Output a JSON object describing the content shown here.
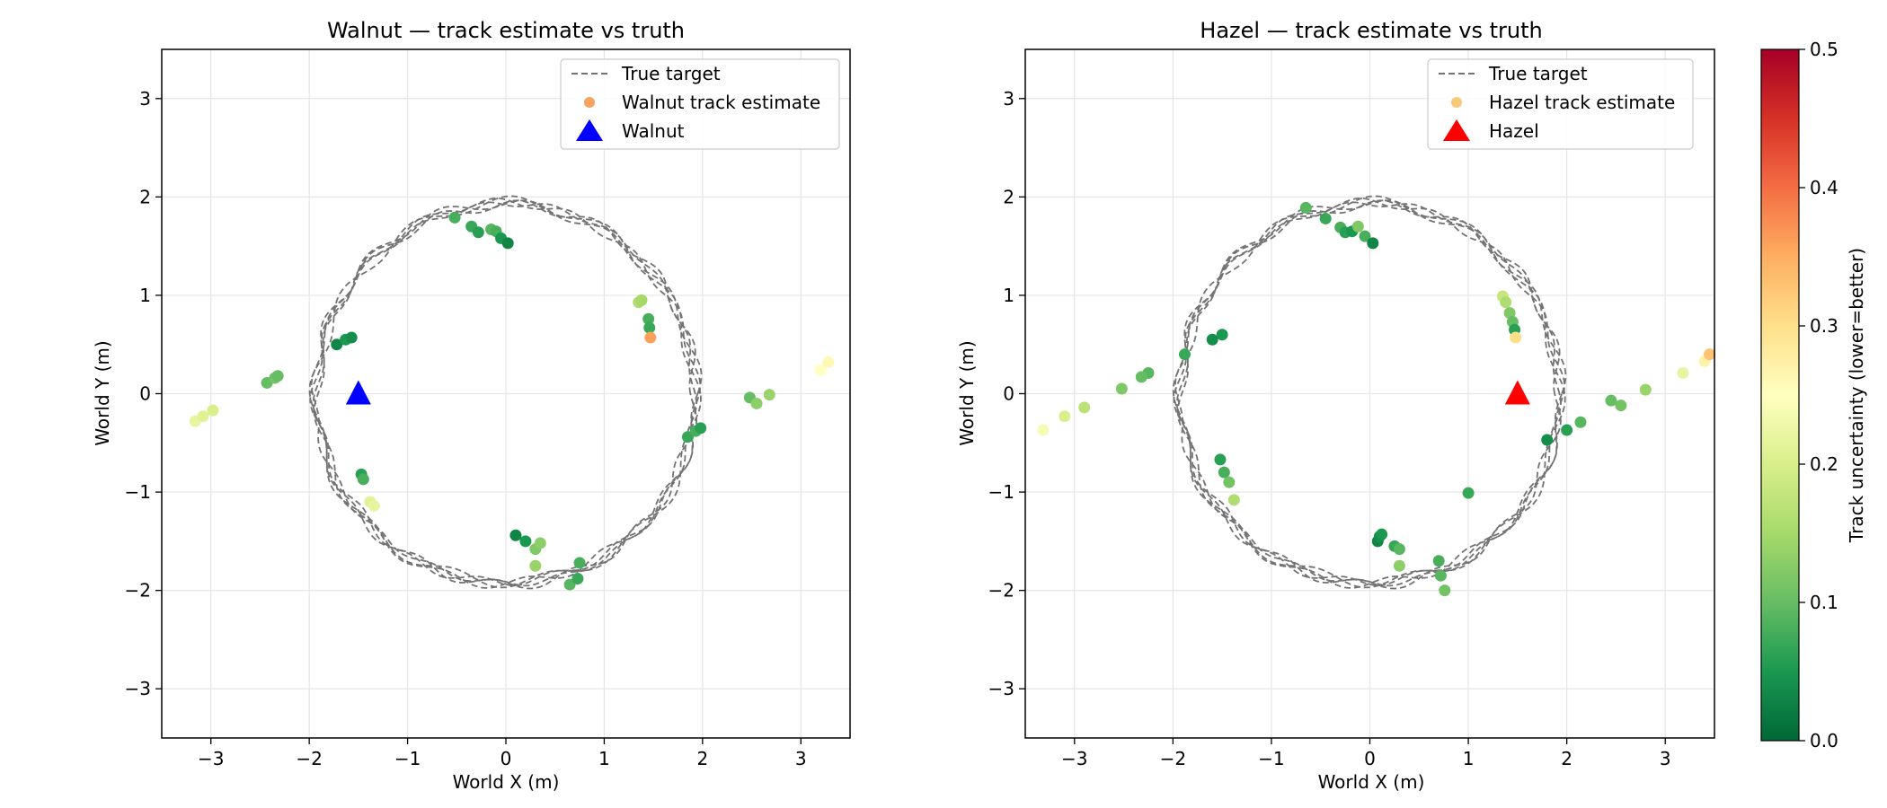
{
  "colors": {
    "truth_line": "#737373",
    "grid": "#e6e6e6",
    "walnut_marker": "#0000ff",
    "hazel_marker": "#ff0000",
    "walnut_legend_dot": "#f4a460",
    "hazel_legend_dot": "#f9c97a"
  },
  "colorbar": {
    "label": "Track uncertainty (lower=better)",
    "range": [
      0,
      0.5
    ],
    "ticks": [
      "0.0",
      "0.1",
      "0.2",
      "0.3",
      "0.4",
      "0.5"
    ],
    "colormap": "RdYlGn_r"
  },
  "chart_data": [
    {
      "type": "scatter",
      "title": "Walnut — track estimate vs truth",
      "xlabel": "World X (m)",
      "ylabel": "World Y (m)",
      "xlim": [
        -3.5,
        3.5
      ],
      "ylim": [
        -3.5,
        3.5
      ],
      "xticks": [
        -3,
        -2,
        -1,
        0,
        1,
        2,
        3
      ],
      "yticks": [
        -3,
        -2,
        -1,
        0,
        1,
        2,
        3
      ],
      "grid": true,
      "legend_position": "upper right",
      "legend": [
        "True target",
        "Walnut track estimate",
        "Walnut"
      ],
      "truth": {
        "shape": "circle",
        "center": [
          0,
          0
        ],
        "radius": 1.93
      },
      "sensor": {
        "name": "Walnut",
        "position": [
          -1.5,
          0
        ],
        "marker": "triangle"
      },
      "estimates": [
        [
          -0.52,
          1.79,
          0.08
        ],
        [
          -0.35,
          1.7,
          0.07
        ],
        [
          -0.28,
          1.64,
          0.06
        ],
        [
          -0.15,
          1.67,
          0.09
        ],
        [
          -0.1,
          1.65,
          0.08
        ],
        [
          -0.05,
          1.58,
          0.05
        ],
        [
          0.02,
          1.53,
          0.03
        ],
        [
          1.35,
          0.93,
          0.16
        ],
        [
          1.38,
          0.95,
          0.15
        ],
        [
          1.45,
          0.76,
          0.08
        ],
        [
          1.46,
          0.67,
          0.07
        ],
        [
          1.47,
          0.57,
          0.36
        ],
        [
          -1.72,
          0.5,
          0.03
        ],
        [
          -1.63,
          0.55,
          0.05
        ],
        [
          -1.57,
          0.57,
          0.04
        ],
        [
          -2.43,
          0.11,
          0.1
        ],
        [
          -2.35,
          0.16,
          0.11
        ],
        [
          -2.32,
          0.18,
          0.1
        ],
        [
          -3.16,
          -0.28,
          0.22
        ],
        [
          -3.08,
          -0.23,
          0.21
        ],
        [
          -2.98,
          -0.17,
          0.2
        ],
        [
          -1.47,
          -0.82,
          0.06
        ],
        [
          -1.45,
          -0.87,
          0.08
        ],
        [
          -1.38,
          -1.1,
          0.21
        ],
        [
          -1.34,
          -1.14,
          0.22
        ],
        [
          0.1,
          -1.44,
          0.03
        ],
        [
          0.2,
          -1.5,
          0.05
        ],
        [
          0.3,
          -1.58,
          0.12
        ],
        [
          0.35,
          -1.52,
          0.13
        ],
        [
          0.3,
          -1.75,
          0.14
        ],
        [
          0.65,
          -1.94,
          0.09
        ],
        [
          0.73,
          -1.88,
          0.07
        ],
        [
          0.75,
          -1.72,
          0.08
        ],
        [
          1.85,
          -0.44,
          0.07
        ],
        [
          1.93,
          -0.38,
          0.08
        ],
        [
          1.98,
          -0.35,
          0.06
        ],
        [
          2.48,
          -0.04,
          0.1
        ],
        [
          2.55,
          -0.1,
          0.13
        ],
        [
          2.68,
          -0.01,
          0.14
        ],
        [
          3.2,
          0.24,
          0.25
        ],
        [
          3.28,
          0.32,
          0.26
        ]
      ]
    },
    {
      "type": "scatter",
      "title": "Hazel — track estimate vs truth",
      "xlabel": "World X (m)",
      "ylabel": "World Y (m)",
      "xlim": [
        -3.5,
        3.5
      ],
      "ylim": [
        -3.5,
        3.5
      ],
      "xticks": [
        -3,
        -2,
        -1,
        0,
        1,
        2,
        3
      ],
      "yticks": [
        -3,
        -2,
        -1,
        0,
        1,
        2,
        3
      ],
      "grid": true,
      "legend_position": "upper right",
      "legend": [
        "True target",
        "Hazel track estimate",
        "Hazel"
      ],
      "truth": {
        "shape": "circle",
        "center": [
          0,
          0
        ],
        "radius": 1.93
      },
      "sensor": {
        "name": "Hazel",
        "position": [
          1.5,
          0
        ],
        "marker": "triangle"
      },
      "estimates": [
        [
          -0.65,
          1.89,
          0.09
        ],
        [
          -0.45,
          1.78,
          0.07
        ],
        [
          -0.3,
          1.69,
          0.08
        ],
        [
          -0.25,
          1.64,
          0.06
        ],
        [
          -0.18,
          1.65,
          0.05
        ],
        [
          -0.12,
          1.7,
          0.12
        ],
        [
          -0.05,
          1.6,
          0.08
        ],
        [
          0.03,
          1.53,
          0.03
        ],
        [
          1.35,
          0.99,
          0.18
        ],
        [
          1.38,
          0.93,
          0.16
        ],
        [
          1.42,
          0.82,
          0.12
        ],
        [
          1.45,
          0.73,
          0.1
        ],
        [
          1.47,
          0.65,
          0.06
        ],
        [
          1.48,
          0.57,
          0.3
        ],
        [
          -1.88,
          0.4,
          0.07
        ],
        [
          -1.6,
          0.55,
          0.04
        ],
        [
          -1.5,
          0.6,
          0.05
        ],
        [
          -2.25,
          0.21,
          0.09
        ],
        [
          -2.32,
          0.17,
          0.1
        ],
        [
          -2.52,
          0.05,
          0.12
        ],
        [
          -2.9,
          -0.14,
          0.17
        ],
        [
          -3.1,
          -0.23,
          0.2
        ],
        [
          -3.32,
          -0.37,
          0.24
        ],
        [
          -1.52,
          -0.67,
          0.06
        ],
        [
          -1.48,
          -0.8,
          0.08
        ],
        [
          -1.43,
          -0.9,
          0.11
        ],
        [
          -1.38,
          -1.08,
          0.16
        ],
        [
          0.08,
          -1.5,
          0.03
        ],
        [
          0.1,
          -1.45,
          0.04
        ],
        [
          0.12,
          -1.43,
          0.05
        ],
        [
          0.25,
          -1.55,
          0.07
        ],
        [
          0.3,
          -1.58,
          0.09
        ],
        [
          0.3,
          -1.75,
          0.13
        ],
        [
          0.7,
          -1.7,
          0.08
        ],
        [
          0.72,
          -1.85,
          0.09
        ],
        [
          0.76,
          -2.0,
          0.11
        ],
        [
          1.0,
          -1.01,
          0.07
        ],
        [
          1.8,
          -0.47,
          0.04
        ],
        [
          2.0,
          -0.37,
          0.06
        ],
        [
          2.14,
          -0.29,
          0.09
        ],
        [
          2.45,
          -0.07,
          0.1
        ],
        [
          2.55,
          -0.12,
          0.11
        ],
        [
          2.8,
          0.04,
          0.14
        ],
        [
          3.18,
          0.21,
          0.22
        ],
        [
          3.4,
          0.33,
          0.27
        ],
        [
          3.45,
          0.4,
          0.33
        ]
      ]
    }
  ]
}
